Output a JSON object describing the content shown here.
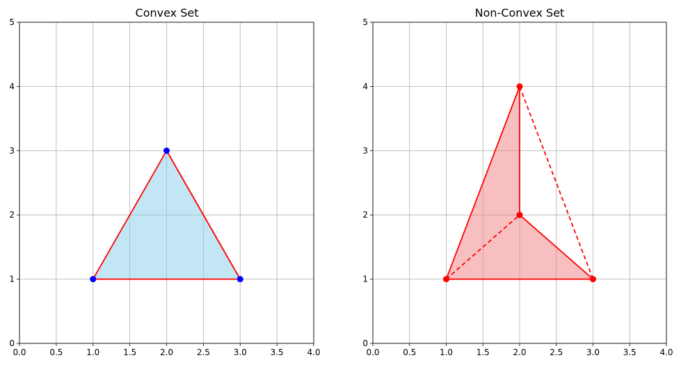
{
  "colors": {
    "grid": "#b0b0b0",
    "axis": "#000000",
    "convex_fill": "#87ceeb",
    "nonconvex_fill": "#f08080",
    "edge": "#ff0000",
    "convex_points": "#0000ff",
    "nonconvex_points": "#ff0000"
  },
  "chart_data": [
    {
      "type": "scatter",
      "title": "Convex Set",
      "xlabel": "",
      "ylabel": "",
      "xlim": [
        0,
        4
      ],
      "ylim": [
        0,
        5
      ],
      "x_ticks": [
        "0.0",
        "0.5",
        "1.0",
        "1.5",
        "2.0",
        "2.5",
        "3.0",
        "3.5",
        "4.0"
      ],
      "y_ticks": [
        "0",
        "1",
        "2",
        "3",
        "4",
        "5"
      ],
      "grid": true,
      "points": [
        {
          "x": 1,
          "y": 1
        },
        {
          "x": 2,
          "y": 3
        },
        {
          "x": 3,
          "y": 1
        }
      ],
      "polygon": [
        [
          1,
          1
        ],
        [
          2,
          3
        ],
        [
          3,
          1
        ]
      ],
      "solid_edges": [
        [
          [
            1,
            1
          ],
          [
            2,
            3
          ]
        ],
        [
          [
            2,
            3
          ],
          [
            3,
            1
          ]
        ],
        [
          [
            3,
            1
          ],
          [
            1,
            1
          ]
        ]
      ],
      "dashed_edges": [
        [
          [
            2,
            3
          ],
          [
            3,
            1
          ]
        ]
      ],
      "point_color": "#0000ff",
      "fill_color": "#87ceeb"
    },
    {
      "type": "scatter",
      "title": "Non-Convex Set",
      "xlabel": "",
      "ylabel": "",
      "xlim": [
        0,
        4
      ],
      "ylim": [
        0,
        5
      ],
      "x_ticks": [
        "0.0",
        "0.5",
        "1.0",
        "1.5",
        "2.0",
        "2.5",
        "3.0",
        "3.5",
        "4.0"
      ],
      "y_ticks": [
        "0",
        "1",
        "2",
        "3",
        "4",
        "5"
      ],
      "grid": true,
      "points": [
        {
          "x": 1,
          "y": 1
        },
        {
          "x": 2,
          "y": 4
        },
        {
          "x": 2,
          "y": 2
        },
        {
          "x": 3,
          "y": 1
        }
      ],
      "polygon": [
        [
          1,
          1
        ],
        [
          2,
          4
        ],
        [
          2,
          2
        ],
        [
          3,
          1
        ]
      ],
      "solid_edges": [
        [
          [
            1,
            1
          ],
          [
            2,
            4
          ]
        ],
        [
          [
            2,
            4
          ],
          [
            2,
            2
          ]
        ],
        [
          [
            2,
            2
          ],
          [
            3,
            1
          ]
        ],
        [
          [
            3,
            1
          ],
          [
            1,
            1
          ]
        ]
      ],
      "dashed_edges": [
        [
          [
            1,
            1
          ],
          [
            2,
            2
          ]
        ],
        [
          [
            2,
            4
          ],
          [
            3,
            1
          ]
        ]
      ],
      "point_color": "#ff0000",
      "fill_color": "#f08080"
    }
  ]
}
